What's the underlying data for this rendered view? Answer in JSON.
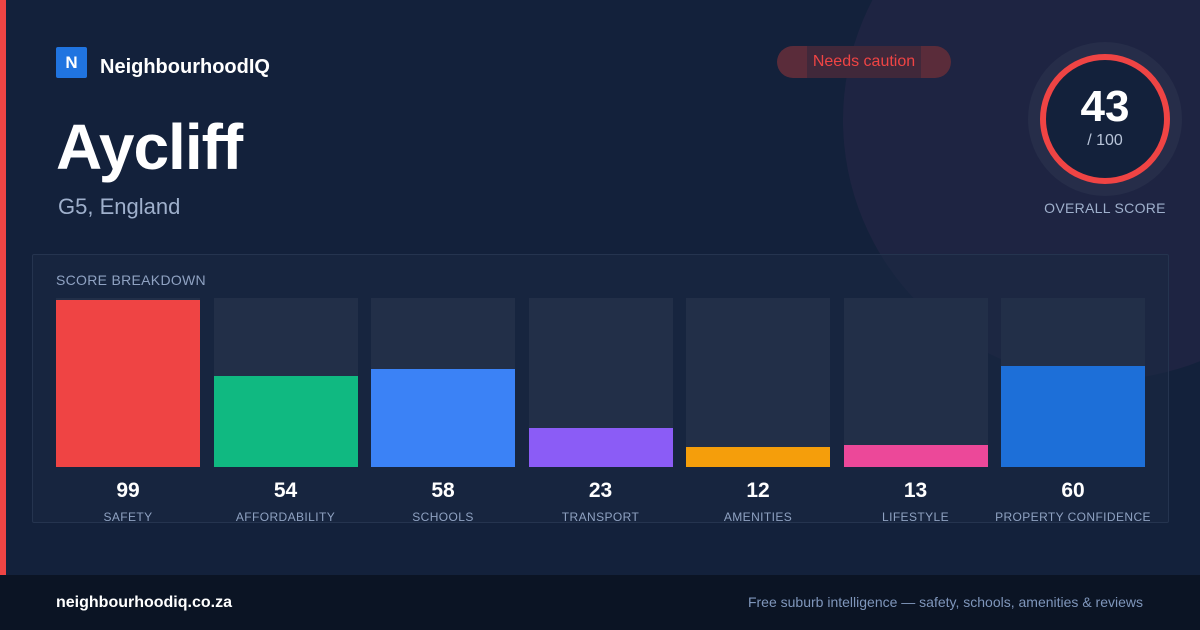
{
  "brand": {
    "logo_letter": "N",
    "name": "NeighbourhoodIQ",
    "color": "#2074e0"
  },
  "area": {
    "name": "Aycliff",
    "location": "G5, England"
  },
  "status": {
    "label": "Needs caution",
    "color": "#ef4444"
  },
  "overall": {
    "score": "43",
    "max": "/ 100",
    "label": "OVERALL SCORE",
    "value": 43,
    "ring_color": "#ef4444"
  },
  "breakdown": {
    "title": "SCORE BREAKDOWN",
    "categories": [
      {
        "label": "SAFETY",
        "value": 99,
        "display": "99",
        "color": "#ef4444"
      },
      {
        "label": "AFFORDABILITY",
        "value": 54,
        "display": "54",
        "color": "#10b981"
      },
      {
        "label": "SCHOOLS",
        "value": 58,
        "display": "58",
        "color": "#3b82f6"
      },
      {
        "label": "TRANSPORT",
        "value": 23,
        "display": "23",
        "color": "#8b5cf6"
      },
      {
        "label": "AMENITIES",
        "value": 12,
        "display": "12",
        "color": "#f59e0b"
      },
      {
        "label": "LIFESTYLE",
        "value": 13,
        "display": "13",
        "color": "#ec4899"
      },
      {
        "label": "PROPERTY CONFIDENCE",
        "value": 60,
        "display": "60",
        "color": "#1d6fd8"
      }
    ]
  },
  "footer": {
    "url": "neighbourhoodiq.co.za",
    "tagline": "Free suburb intelligence — safety, schools, amenities & reviews"
  }
}
